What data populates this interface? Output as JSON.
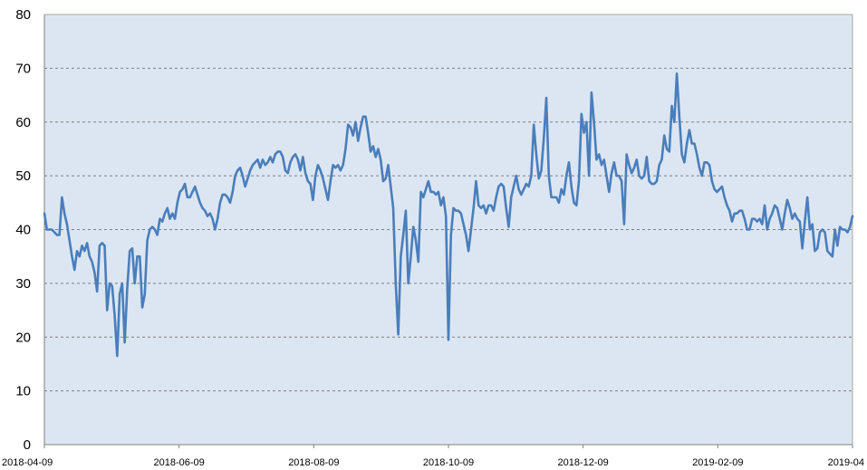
{
  "chart_data": {
    "type": "line",
    "title": "",
    "xlabel": "",
    "ylabel": "",
    "ylim": [
      0,
      80
    ],
    "y_ticks": [
      0,
      10,
      20,
      30,
      40,
      50,
      60,
      70,
      80
    ],
    "x_tick_labels": [
      "2018-04-09",
      "2018-06-09",
      "2018-08-09",
      "2018-10-09",
      "2018-12-09",
      "2019-02-09",
      "2019-04"
    ],
    "grid": "horizontal dashed",
    "colors": {
      "line": "#4a7ebb",
      "plot_background": "#dce6f2",
      "grid": "#7f7f7f",
      "axis": "#808080"
    },
    "series": [
      {
        "points": [
          [
            0,
            43
          ],
          [
            1,
            40
          ],
          [
            2,
            40
          ],
          [
            3,
            40
          ],
          [
            4,
            39.5
          ],
          [
            5,
            39
          ],
          [
            6,
            39
          ],
          [
            7,
            46
          ],
          [
            8,
            43
          ],
          [
            9,
            41
          ],
          [
            10,
            38
          ],
          [
            11,
            35
          ],
          [
            12,
            32.5
          ],
          [
            13,
            36
          ],
          [
            14,
            35
          ],
          [
            15,
            37
          ],
          [
            16,
            36
          ],
          [
            17,
            37.5
          ],
          [
            18,
            35
          ],
          [
            19,
            34
          ],
          [
            20,
            32
          ],
          [
            21,
            28.5
          ],
          [
            22,
            37
          ],
          [
            23,
            37.5
          ],
          [
            24,
            37
          ],
          [
            25,
            25
          ],
          [
            26,
            30
          ],
          [
            27,
            29.5
          ],
          [
            28,
            24
          ],
          [
            29,
            16.5
          ],
          [
            30,
            28
          ],
          [
            31,
            30
          ],
          [
            32,
            19
          ],
          [
            33,
            29
          ],
          [
            34,
            36
          ],
          [
            35,
            36.5
          ],
          [
            36,
            30
          ],
          [
            37,
            35
          ],
          [
            38,
            35
          ],
          [
            39,
            25.5
          ],
          [
            40,
            28
          ],
          [
            41,
            38
          ],
          [
            42,
            40
          ],
          [
            43,
            40.5
          ],
          [
            44,
            40
          ],
          [
            45,
            39
          ],
          [
            46,
            42
          ],
          [
            47,
            41.5
          ],
          [
            48,
            43
          ],
          [
            49,
            44
          ],
          [
            50,
            42
          ],
          [
            51,
            43
          ],
          [
            52,
            42
          ],
          [
            53,
            45
          ],
          [
            54,
            47
          ],
          [
            55,
            47.5
          ],
          [
            56,
            48.5
          ],
          [
            57,
            46
          ],
          [
            58,
            46
          ],
          [
            59,
            47
          ],
          [
            60,
            48
          ],
          [
            61,
            46.5
          ],
          [
            62,
            45
          ],
          [
            63,
            44
          ],
          [
            64,
            43.5
          ],
          [
            65,
            42.5
          ],
          [
            66,
            43
          ],
          [
            67,
            42
          ],
          [
            68,
            40
          ],
          [
            69,
            42
          ],
          [
            70,
            45
          ],
          [
            71,
            46.5
          ],
          [
            72,
            46.5
          ],
          [
            73,
            46
          ],
          [
            74,
            45
          ],
          [
            75,
            47
          ],
          [
            76,
            50
          ],
          [
            77,
            51
          ],
          [
            78,
            51.5
          ],
          [
            79,
            50
          ],
          [
            80,
            48
          ],
          [
            81,
            49.5
          ],
          [
            82,
            51
          ],
          [
            83,
            52
          ],
          [
            84,
            52.5
          ],
          [
            85,
            53
          ],
          [
            86,
            51.5
          ],
          [
            87,
            53
          ],
          [
            88,
            52
          ],
          [
            89,
            52.5
          ],
          [
            90,
            53.5
          ],
          [
            91,
            52.5
          ],
          [
            92,
            54
          ],
          [
            93,
            54.5
          ],
          [
            94,
            54.5
          ],
          [
            95,
            53.5
          ],
          [
            96,
            51
          ],
          [
            97,
            50.5
          ],
          [
            98,
            52.5
          ],
          [
            99,
            53.5
          ],
          [
            100,
            54
          ],
          [
            101,
            53
          ],
          [
            102,
            51
          ],
          [
            103,
            53.5
          ],
          [
            104,
            50.5
          ],
          [
            105,
            49
          ],
          [
            106,
            48.5
          ],
          [
            107,
            45.5
          ],
          [
            108,
            50
          ],
          [
            109,
            52
          ],
          [
            110,
            51
          ],
          [
            111,
            49.5
          ],
          [
            112,
            47.5
          ],
          [
            113,
            45.5
          ],
          [
            114,
            49
          ],
          [
            115,
            52
          ],
          [
            116,
            51.5
          ],
          [
            117,
            52
          ],
          [
            118,
            51
          ],
          [
            119,
            52
          ],
          [
            120,
            55
          ],
          [
            121,
            59.5
          ],
          [
            122,
            59
          ],
          [
            123,
            57.5
          ],
          [
            124,
            60
          ],
          [
            125,
            56.5
          ],
          [
            126,
            59
          ],
          [
            127,
            61
          ],
          [
            128,
            61
          ],
          [
            129,
            58
          ],
          [
            130,
            54.5
          ],
          [
            131,
            55.5
          ],
          [
            132,
            53.5
          ],
          [
            133,
            55
          ],
          [
            134,
            53
          ],
          [
            135,
            49
          ],
          [
            136,
            49.5
          ],
          [
            137,
            52
          ],
          [
            138,
            48
          ],
          [
            139,
            44
          ],
          [
            140,
            30
          ],
          [
            141,
            20.5
          ],
          [
            142,
            35
          ],
          [
            143,
            39
          ],
          [
            144,
            43.5
          ],
          [
            145,
            30
          ],
          [
            146,
            35
          ],
          [
            147,
            40.5
          ],
          [
            148,
            38
          ],
          [
            149,
            34
          ],
          [
            150,
            47
          ],
          [
            151,
            46
          ],
          [
            152,
            47.5
          ],
          [
            153,
            49
          ],
          [
            154,
            47
          ],
          [
            155,
            47
          ],
          [
            156,
            46.5
          ],
          [
            157,
            47
          ],
          [
            158,
            44.5
          ],
          [
            159,
            46
          ],
          [
            160,
            42.5
          ],
          [
            161,
            19.5
          ],
          [
            162,
            39
          ],
          [
            163,
            44
          ],
          [
            164,
            43.5
          ],
          [
            165,
            43.5
          ],
          [
            166,
            43
          ],
          [
            167,
            41
          ],
          [
            168,
            39
          ],
          [
            169,
            36
          ],
          [
            170,
            40
          ],
          [
            171,
            44
          ],
          [
            172,
            49
          ],
          [
            173,
            44.5
          ],
          [
            174,
            44
          ],
          [
            175,
            44.5
          ],
          [
            176,
            43
          ],
          [
            177,
            44.5
          ],
          [
            178,
            44.5
          ],
          [
            179,
            43.5
          ],
          [
            180,
            46
          ],
          [
            181,
            48
          ],
          [
            182,
            48.5
          ],
          [
            183,
            48
          ],
          [
            184,
            44
          ],
          [
            185,
            40.5
          ],
          [
            186,
            46
          ],
          [
            187,
            48
          ],
          [
            188,
            50
          ],
          [
            189,
            47.5
          ],
          [
            190,
            46.5
          ],
          [
            191,
            47.5
          ],
          [
            192,
            48.5
          ],
          [
            193,
            48
          ],
          [
            194,
            50
          ],
          [
            195,
            59.5
          ],
          [
            196,
            54
          ],
          [
            197,
            49.5
          ],
          [
            198,
            51
          ],
          [
            199,
            57
          ],
          [
            200,
            64.5
          ],
          [
            201,
            50
          ],
          [
            202,
            46
          ],
          [
            203,
            46
          ],
          [
            204,
            46
          ],
          [
            205,
            45
          ],
          [
            206,
            47.5
          ],
          [
            207,
            46.5
          ],
          [
            208,
            50
          ],
          [
            209,
            52.5
          ],
          [
            210,
            48
          ],
          [
            211,
            45
          ],
          [
            212,
            44.5
          ],
          [
            213,
            49
          ],
          [
            214,
            61.5
          ],
          [
            215,
            58
          ],
          [
            216,
            60
          ],
          [
            217,
            50
          ],
          [
            218,
            65.5
          ],
          [
            219,
            60
          ],
          [
            220,
            53
          ],
          [
            221,
            54
          ],
          [
            222,
            52
          ],
          [
            223,
            53
          ],
          [
            224,
            50
          ],
          [
            225,
            47
          ],
          [
            226,
            50.5
          ],
          [
            227,
            52.5
          ],
          [
            228,
            50
          ],
          [
            229,
            50
          ],
          [
            230,
            49
          ],
          [
            231,
            41
          ],
          [
            232,
            54
          ],
          [
            233,
            52
          ],
          [
            234,
            50.5
          ],
          [
            235,
            51.5
          ],
          [
            236,
            53
          ],
          [
            237,
            50
          ],
          [
            238,
            49.5
          ],
          [
            239,
            50
          ],
          [
            240,
            53.5
          ],
          [
            241,
            49
          ],
          [
            242,
            48.5
          ],
          [
            243,
            48.5
          ],
          [
            244,
            49
          ],
          [
            245,
            52
          ],
          [
            246,
            53
          ],
          [
            247,
            57.5
          ],
          [
            248,
            55
          ],
          [
            249,
            54.5
          ],
          [
            250,
            63
          ],
          [
            251,
            60
          ],
          [
            252,
            69
          ],
          [
            253,
            61
          ],
          [
            254,
            54
          ],
          [
            255,
            52.5
          ],
          [
            256,
            56
          ],
          [
            257,
            58.5
          ],
          [
            258,
            56
          ],
          [
            259,
            56
          ],
          [
            260,
            54
          ],
          [
            261,
            51.5
          ],
          [
            262,
            50
          ],
          [
            263,
            52.5
          ],
          [
            264,
            52.5
          ],
          [
            265,
            52
          ],
          [
            266,
            49
          ],
          [
            267,
            47.5
          ],
          [
            268,
            47
          ],
          [
            269,
            47.5
          ],
          [
            270,
            48
          ],
          [
            271,
            46
          ],
          [
            272,
            44.5
          ],
          [
            273,
            43.5
          ],
          [
            274,
            41.5
          ],
          [
            275,
            43
          ],
          [
            276,
            43
          ],
          [
            277,
            43.5
          ],
          [
            278,
            43.5
          ],
          [
            279,
            42
          ],
          [
            280,
            40
          ],
          [
            281,
            40
          ],
          [
            282,
            42
          ],
          [
            283,
            42
          ],
          [
            284,
            41.5
          ],
          [
            285,
            42
          ],
          [
            286,
            41
          ],
          [
            287,
            44.5
          ],
          [
            288,
            40
          ],
          [
            289,
            42
          ],
          [
            290,
            43
          ],
          [
            291,
            44.5
          ],
          [
            292,
            44
          ],
          [
            293,
            42
          ],
          [
            294,
            40
          ],
          [
            295,
            43
          ],
          [
            296,
            45.5
          ],
          [
            297,
            44
          ],
          [
            298,
            42
          ],
          [
            299,
            43
          ],
          [
            300,
            42
          ],
          [
            301,
            41.5
          ],
          [
            302,
            36.5
          ],
          [
            303,
            41.5
          ],
          [
            304,
            46
          ],
          [
            305,
            40
          ],
          [
            306,
            41
          ],
          [
            307,
            36
          ],
          [
            308,
            36.5
          ],
          [
            309,
            39.5
          ],
          [
            310,
            40
          ],
          [
            311,
            39.5
          ],
          [
            312,
            36
          ],
          [
            313,
            35.5
          ],
          [
            314,
            35
          ],
          [
            315,
            40
          ],
          [
            316,
            37
          ],
          [
            317,
            40.5
          ],
          [
            318,
            40
          ],
          [
            319,
            40
          ],
          [
            320,
            39.5
          ],
          [
            321,
            40.5
          ],
          [
            322,
            42.5
          ]
        ]
      }
    ]
  }
}
